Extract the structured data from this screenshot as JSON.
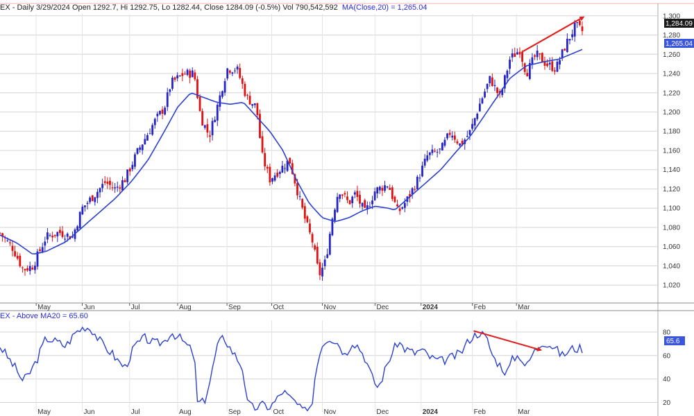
{
  "header": {
    "price_line": "EX - Daily 3/29/2024 Open 1292.7, Hi 1292.75, Lo 1282.44, Close 1284.09 (-0.5%) Vol 790,542,592",
    "ma_line": "MA(Close,20) = 1,265.04",
    "osc_line": "EX - Above MA20 = 65.60"
  },
  "labels": {
    "last_close": "1,284.09",
    "ma_last": "1,265.04",
    "osc_last": "65.6"
  },
  "colors": {
    "up": "#2323c8",
    "down": "#e01010",
    "ma": "#2a3fcf",
    "osc": "#2a3fcf",
    "trend": "#e02020",
    "label_bg": "#1b1b1b",
    "ma_label_bg": "#3a55e0",
    "osc_label_bg": "#3a55e0"
  },
  "chart_data": [
    {
      "type": "candlestick",
      "title": "EX - Daily 3/29/2024 Open 1292.7, Hi 1292.75, Lo 1282.44, Close 1284.09 (-0.5%) Vol 790,542,592",
      "ylim": [
        1005,
        1302
      ],
      "yticks": [
        "1,020",
        "1,040",
        "1,060",
        "1,080",
        "1,100",
        "1,120",
        "1,140",
        "1,160",
        "1,180",
        "1,200",
        "1,220",
        "1,240",
        "1,260",
        "1,280",
        "1,300"
      ],
      "ytick_values": [
        1020,
        1040,
        1060,
        1080,
        1100,
        1120,
        1140,
        1160,
        1180,
        1200,
        1220,
        1240,
        1260,
        1280,
        1300
      ],
      "grid": true,
      "xticks": [
        {
          "label": "May",
          "t": 0.055
        },
        {
          "label": "Jun",
          "t": 0.125
        },
        {
          "label": "Jul",
          "t": 0.197
        },
        {
          "label": "Aug",
          "t": 0.27
        },
        {
          "label": "Sep",
          "t": 0.345
        },
        {
          "label": "Oct",
          "t": 0.413
        },
        {
          "label": "Nov",
          "t": 0.49
        },
        {
          "label": "Dec",
          "t": 0.57
        },
        {
          "label": "2024",
          "t": 0.64,
          "bold": true
        },
        {
          "label": "Feb",
          "t": 0.718
        },
        {
          "label": "Mar",
          "t": 0.785
        }
      ],
      "price_keypoints": [
        [
          0.0,
          1074
        ],
        [
          0.02,
          1058
        ],
        [
          0.035,
          1036
        ],
        [
          0.05,
          1040
        ],
        [
          0.07,
          1070
        ],
        [
          0.09,
          1075
        ],
        [
          0.11,
          1070
        ],
        [
          0.125,
          1100
        ],
        [
          0.145,
          1115
        ],
        [
          0.16,
          1127
        ],
        [
          0.175,
          1120
        ],
        [
          0.19,
          1130
        ],
        [
          0.21,
          1160
        ],
        [
          0.235,
          1190
        ],
        [
          0.25,
          1205
        ],
        [
          0.26,
          1230
        ],
        [
          0.28,
          1240
        ],
        [
          0.295,
          1240
        ],
        [
          0.305,
          1195
        ],
        [
          0.318,
          1175
        ],
        [
          0.33,
          1205
        ],
        [
          0.345,
          1245
        ],
        [
          0.36,
          1245
        ],
        [
          0.375,
          1215
        ],
        [
          0.39,
          1205
        ],
        [
          0.398,
          1155
        ],
        [
          0.41,
          1130
        ],
        [
          0.425,
          1140
        ],
        [
          0.44,
          1150
        ],
        [
          0.455,
          1110
        ],
        [
          0.465,
          1085
        ],
        [
          0.475,
          1065
        ],
        [
          0.485,
          1030
        ],
        [
          0.495,
          1045
        ],
        [
          0.505,
          1090
        ],
        [
          0.515,
          1120
        ],
        [
          0.53,
          1105
        ],
        [
          0.54,
          1115
        ],
        [
          0.555,
          1095
        ],
        [
          0.57,
          1118
        ],
        [
          0.59,
          1125
        ],
        [
          0.605,
          1095
        ],
        [
          0.62,
          1110
        ],
        [
          0.635,
          1130
        ],
        [
          0.65,
          1155
        ],
        [
          0.67,
          1160
        ],
        [
          0.685,
          1180
        ],
        [
          0.7,
          1165
        ],
        [
          0.715,
          1180
        ],
        [
          0.73,
          1210
        ],
        [
          0.745,
          1235
        ],
        [
          0.76,
          1215
        ],
        [
          0.775,
          1255
        ],
        [
          0.79,
          1265
        ],
        [
          0.8,
          1240
        ],
        [
          0.815,
          1260
        ],
        [
          0.83,
          1250
        ],
        [
          0.845,
          1245
        ],
        [
          0.86,
          1270
        ],
        [
          0.875,
          1290
        ],
        [
          0.885,
          1284
        ]
      ],
      "ma20_keypoints": [
        [
          0.0,
          1072
        ],
        [
          0.025,
          1064
        ],
        [
          0.05,
          1052
        ],
        [
          0.07,
          1055
        ],
        [
          0.1,
          1065
        ],
        [
          0.125,
          1080
        ],
        [
          0.15,
          1095
        ],
        [
          0.175,
          1110
        ],
        [
          0.2,
          1128
        ],
        [
          0.225,
          1150
        ],
        [
          0.25,
          1180
        ],
        [
          0.27,
          1205
        ],
        [
          0.29,
          1220
        ],
        [
          0.31,
          1215
        ],
        [
          0.33,
          1210
        ],
        [
          0.35,
          1208
        ],
        [
          0.37,
          1210
        ],
        [
          0.39,
          1195
        ],
        [
          0.41,
          1180
        ],
        [
          0.43,
          1160
        ],
        [
          0.45,
          1130
        ],
        [
          0.47,
          1105
        ],
        [
          0.49,
          1090
        ],
        [
          0.51,
          1086
        ],
        [
          0.53,
          1090
        ],
        [
          0.55,
          1097
        ],
        [
          0.57,
          1102
        ],
        [
          0.59,
          1100
        ],
        [
          0.6,
          1098
        ],
        [
          0.62,
          1110
        ],
        [
          0.645,
          1125
        ],
        [
          0.67,
          1140
        ],
        [
          0.695,
          1160
        ],
        [
          0.715,
          1175
        ],
        [
          0.735,
          1195
        ],
        [
          0.755,
          1215
        ],
        [
          0.775,
          1235
        ],
        [
          0.8,
          1248
        ],
        [
          0.825,
          1252
        ],
        [
          0.85,
          1255
        ],
        [
          0.885,
          1265
        ]
      ],
      "trendline": [
        [
          0.795,
          1263
        ],
        [
          0.885,
          1298
        ]
      ]
    },
    {
      "type": "line",
      "title": "EX - Above MA20 = 65.60",
      "ylim": [
        12,
        90
      ],
      "yticks": [
        "20",
        "40",
        "60",
        "80"
      ],
      "ytick_values": [
        20,
        40,
        60,
        80
      ],
      "grid": true,
      "series": [
        {
          "values_keypoints": [
            [
              0.0,
              68
            ],
            [
              0.01,
              60
            ],
            [
              0.025,
              48
            ],
            [
              0.035,
              38
            ],
            [
              0.045,
              45
            ],
            [
              0.055,
              55
            ],
            [
              0.07,
              75
            ],
            [
              0.085,
              72
            ],
            [
              0.1,
              68
            ],
            [
              0.115,
              80
            ],
            [
              0.13,
              85
            ],
            [
              0.14,
              82
            ],
            [
              0.155,
              70
            ],
            [
              0.17,
              62
            ],
            [
              0.18,
              55
            ],
            [
              0.19,
              50
            ],
            [
              0.205,
              68
            ],
            [
              0.22,
              75
            ],
            [
              0.235,
              70
            ],
            [
              0.25,
              72
            ],
            [
              0.26,
              80
            ],
            [
              0.275,
              74
            ],
            [
              0.285,
              68
            ],
            [
              0.295,
              62
            ],
            [
              0.3,
              20
            ],
            [
              0.31,
              20
            ],
            [
              0.32,
              40
            ],
            [
              0.33,
              68
            ],
            [
              0.34,
              76
            ],
            [
              0.35,
              66
            ],
            [
              0.36,
              58
            ],
            [
              0.37,
              48
            ],
            [
              0.375,
              20
            ],
            [
              0.385,
              15
            ],
            [
              0.4,
              18
            ],
            [
              0.41,
              16
            ],
            [
              0.42,
              22
            ],
            [
              0.43,
              30
            ],
            [
              0.44,
              24
            ],
            [
              0.45,
              20
            ],
            [
              0.455,
              15
            ],
            [
              0.465,
              12
            ],
            [
              0.475,
              20
            ],
            [
              0.48,
              50
            ],
            [
              0.49,
              70
            ],
            [
              0.5,
              76
            ],
            [
              0.515,
              70
            ],
            [
              0.525,
              60
            ],
            [
              0.535,
              72
            ],
            [
              0.545,
              68
            ],
            [
              0.555,
              58
            ],
            [
              0.565,
              42
            ],
            [
              0.575,
              32
            ],
            [
              0.59,
              55
            ],
            [
              0.605,
              72
            ],
            [
              0.615,
              66
            ],
            [
              0.63,
              62
            ],
            [
              0.64,
              65
            ],
            [
              0.655,
              58
            ],
            [
              0.67,
              55
            ],
            [
              0.685,
              58
            ],
            [
              0.7,
              62
            ],
            [
              0.715,
              75
            ],
            [
              0.73,
              80
            ],
            [
              0.74,
              74
            ],
            [
              0.75,
              58
            ],
            [
              0.76,
              52
            ],
            [
              0.77,
              45
            ],
            [
              0.78,
              58
            ],
            [
              0.79,
              60
            ],
            [
              0.8,
              50
            ],
            [
              0.81,
              62
            ],
            [
              0.825,
              72
            ],
            [
              0.84,
              68
            ],
            [
              0.855,
              60
            ],
            [
              0.87,
              66
            ],
            [
              0.885,
              66
            ]
          ]
        }
      ],
      "trendline": [
        [
          0.72,
          81
        ],
        [
          0.82,
          65
        ]
      ]
    }
  ]
}
